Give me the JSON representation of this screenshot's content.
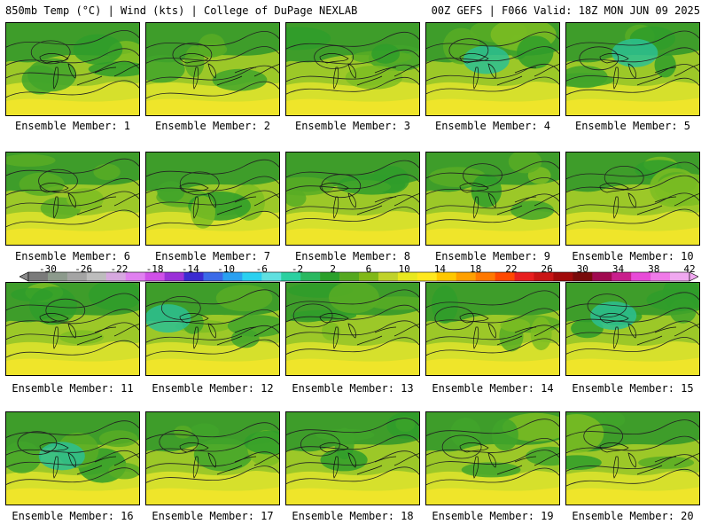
{
  "header": {
    "left": "850mb Temp (°C) | Wind (kts) | College of DuPage NEXLAB",
    "right": "00Z GEFS | F066 Valid: 18Z MON JUN 09 2025"
  },
  "panels": [
    {
      "label": "Ensemble Member: 1"
    },
    {
      "label": "Ensemble Member: 2"
    },
    {
      "label": "Ensemble Member: 3"
    },
    {
      "label": "Ensemble Member: 4"
    },
    {
      "label": "Ensemble Member: 5"
    },
    {
      "label": "Ensemble Member: 6"
    },
    {
      "label": "Ensemble Member: 7"
    },
    {
      "label": "Ensemble Member: 8"
    },
    {
      "label": "Ensemble Member: 9"
    },
    {
      "label": "Ensemble Member: 10"
    },
    {
      "label": "Ensemble Member: 11"
    },
    {
      "label": "Ensemble Member: 12"
    },
    {
      "label": "Ensemble Member: 13"
    },
    {
      "label": "Ensemble Member: 14"
    },
    {
      "label": "Ensemble Member: 15"
    },
    {
      "label": "Ensemble Member: 16"
    },
    {
      "label": "Ensemble Member: 17"
    },
    {
      "label": "Ensemble Member: 18"
    },
    {
      "label": "Ensemble Member: 19"
    },
    {
      "label": "Ensemble Member: 20"
    }
  ],
  "colorbar": {
    "labels": [
      "-30",
      "-26",
      "-22",
      "-18",
      "-14",
      "-10",
      "-6",
      "-2",
      "2",
      "6",
      "10",
      "14",
      "18",
      "22",
      "26",
      "30",
      "34",
      "38",
      "42"
    ],
    "colors": [
      "#7a7a7a",
      "#8c9a8c",
      "#a4a4a4",
      "#bdbdbd",
      "#d7a8e0",
      "#e080f0",
      "#d050e8",
      "#9a30d8",
      "#3a2ad0",
      "#3a6ae8",
      "#2aa0f0",
      "#2ad0f0",
      "#60e0e0",
      "#2ad0a0",
      "#2ab860",
      "#2aa02a",
      "#55a820",
      "#80b818",
      "#c0d22a",
      "#e8e81e",
      "#ffe81e",
      "#ffc800",
      "#ffa000",
      "#ff7800",
      "#ff4800",
      "#e81e1e",
      "#c81414",
      "#a00a0a",
      "#780a0a",
      "#a00a50",
      "#c81e8c",
      "#e84ad8",
      "#f07ae8",
      "#f0a8f0"
    ]
  }
}
